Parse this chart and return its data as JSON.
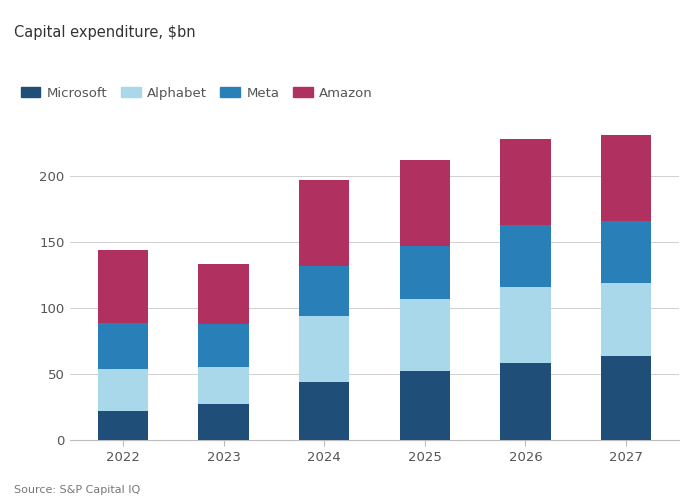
{
  "title": "Capital expenditure, $bn",
  "source": "Source: S&P Capital IQ",
  "years": [
    2022,
    2023,
    2024,
    2025,
    2026,
    2027
  ],
  "series": [
    {
      "name": "Microsoft",
      "color": "#1f4e79",
      "values": [
        22,
        27,
        44,
        52,
        58,
        64
      ]
    },
    {
      "name": "Alphabet",
      "color": "#a8d8ea",
      "values": [
        32,
        28,
        50,
        55,
        58,
        55
      ]
    },
    {
      "name": "Meta",
      "color": "#2980b9",
      "values": [
        35,
        33,
        38,
        40,
        47,
        47
      ]
    },
    {
      "name": "Amazon",
      "color": "#b03060",
      "values": [
        55,
        45,
        65,
        65,
        65,
        65
      ]
    }
  ],
  "ylim": [
    0,
    250
  ],
  "yticks": [
    0,
    50,
    100,
    150,
    200
  ],
  "bar_width": 0.5,
  "background_color": "#ffffff",
  "grid_color": "#d0d0d0",
  "title_fontsize": 10.5,
  "tick_fontsize": 9.5,
  "legend_fontsize": 9.5,
  "axis_label_color": "#555555",
  "title_color": "#333333",
  "source_fontsize": 8
}
